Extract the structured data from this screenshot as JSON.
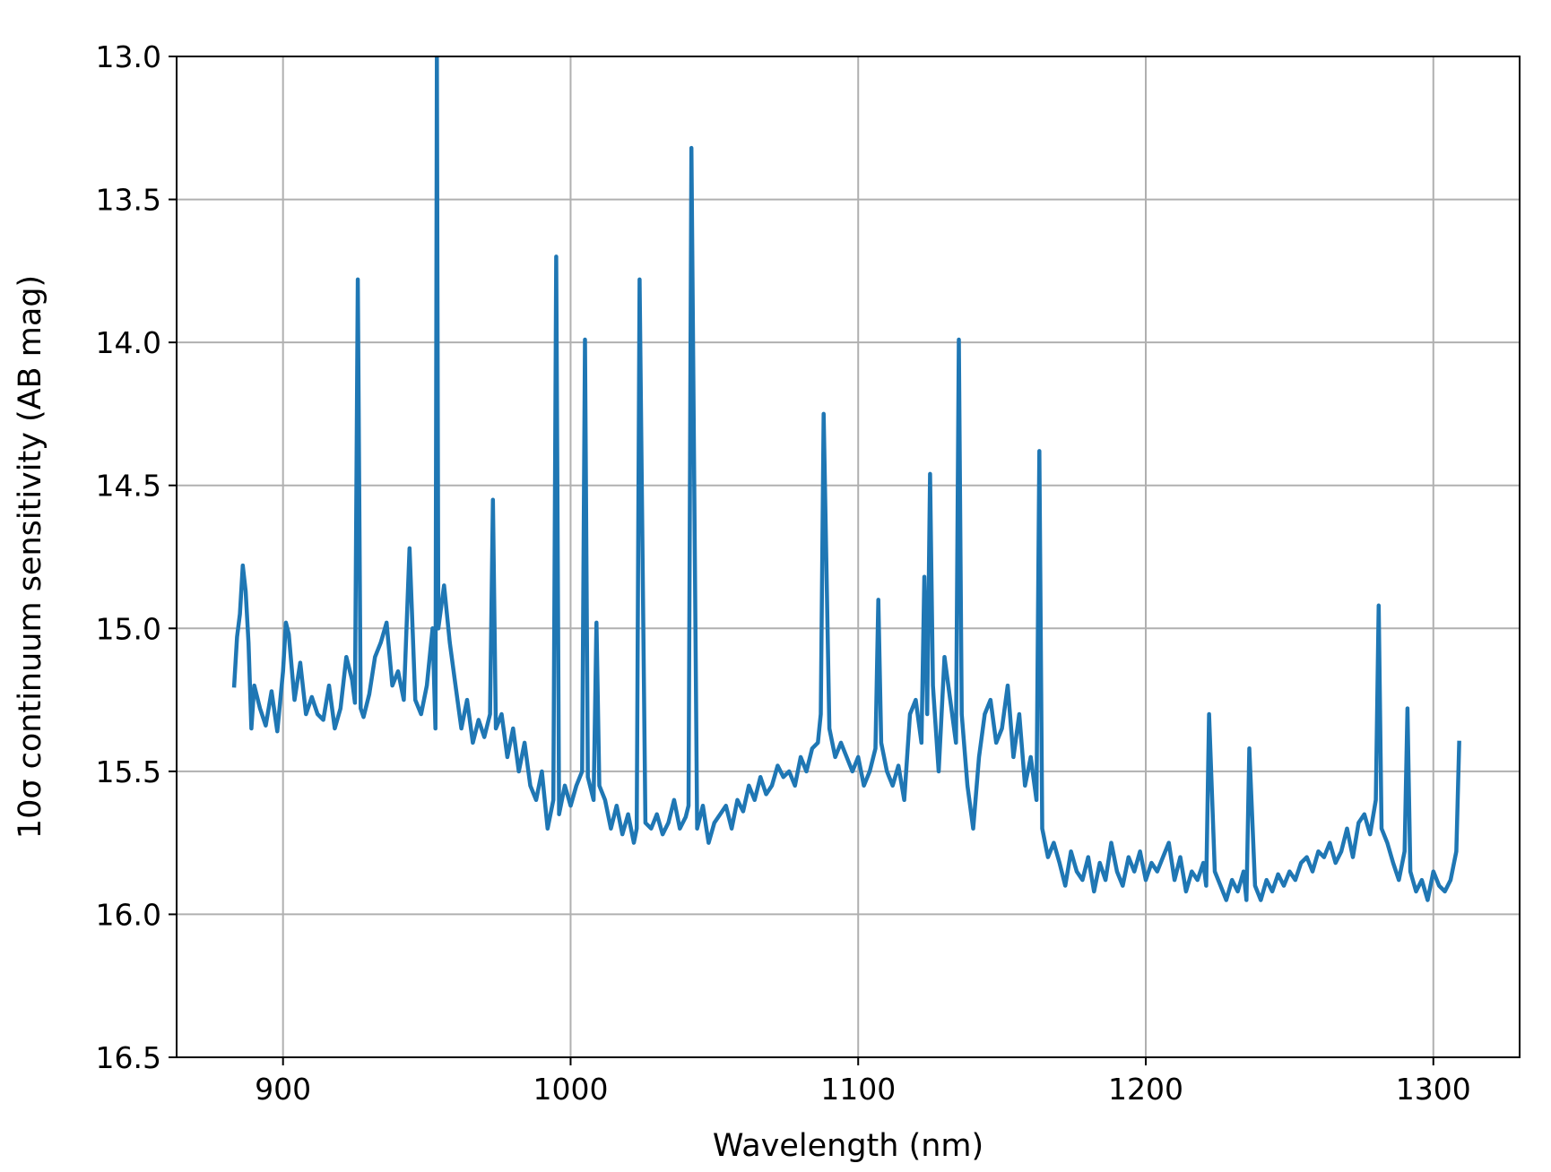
{
  "chart_data": {
    "type": "line",
    "title": "",
    "xlabel": "Wavelength (nm)",
    "ylabel": "10σ continuum sensitivity (AB mag)",
    "xlim": [
      863,
      1330
    ],
    "ylim": [
      13.0,
      16.5
    ],
    "y_inverted": true,
    "grid": true,
    "x_ticks": [
      900,
      1000,
      1100,
      1200,
      1300
    ],
    "x_tick_labels": [
      "900",
      "1000",
      "1100",
      "1200",
      "1300"
    ],
    "y_ticks": [
      13.0,
      13.5,
      14.0,
      14.5,
      15.0,
      15.5,
      16.0,
      16.5
    ],
    "y_tick_labels": [
      "13.0",
      "13.5",
      "14.0",
      "14.5",
      "15.0",
      "15.5",
      "16.0",
      "16.5"
    ],
    "line_color": "#1f77b4",
    "series": [
      {
        "x": [
          883,
          884,
          885,
          886,
          887,
          888,
          889,
          890,
          892,
          894,
          896,
          898,
          900,
          901,
          902,
          904,
          906,
          908,
          910,
          912,
          914,
          916,
          918,
          920,
          922,
          924,
          925,
          926,
          927,
          928,
          930,
          932,
          934,
          936,
          938,
          940,
          942,
          944,
          946,
          948,
          950,
          952,
          953,
          953.5,
          954,
          956,
          958,
          960,
          962,
          964,
          966,
          968,
          970,
          972,
          973,
          974,
          976,
          978,
          980,
          982,
          984,
          986,
          988,
          990,
          992,
          994,
          995,
          996,
          998,
          1000,
          1002,
          1004,
          1005,
          1006,
          1008,
          1009,
          1010,
          1012,
          1014,
          1016,
          1018,
          1020,
          1022,
          1023,
          1024,
          1026,
          1028,
          1030,
          1032,
          1034,
          1036,
          1038,
          1040,
          1041,
          1042,
          1044,
          1046,
          1048,
          1050,
          1052,
          1054,
          1056,
          1058,
          1060,
          1062,
          1064,
          1066,
          1068,
          1070,
          1072,
          1074,
          1076,
          1078,
          1080,
          1082,
          1084,
          1086,
          1087,
          1088,
          1090,
          1092,
          1094,
          1096,
          1098,
          1100,
          1102,
          1104,
          1106,
          1107,
          1108,
          1110,
          1112,
          1114,
          1116,
          1118,
          1120,
          1122,
          1123,
          1124,
          1125,
          1126,
          1128,
          1130,
          1132,
          1134,
          1135,
          1136,
          1138,
          1140,
          1142,
          1144,
          1146,
          1148,
          1150,
          1152,
          1154,
          1156,
          1158,
          1160,
          1162,
          1163,
          1164,
          1166,
          1168,
          1170,
          1172,
          1174,
          1176,
          1178,
          1180,
          1182,
          1184,
          1186,
          1188,
          1190,
          1192,
          1194,
          1196,
          1198,
          1200,
          1202,
          1204,
          1206,
          1208,
          1210,
          1212,
          1214,
          1216,
          1218,
          1220,
          1221,
          1222,
          1224,
          1226,
          1228,
          1230,
          1232,
          1234,
          1235,
          1236,
          1238,
          1240,
          1242,
          1244,
          1246,
          1248,
          1250,
          1252,
          1254,
          1256,
          1258,
          1260,
          1262,
          1264,
          1266,
          1268,
          1270,
          1272,
          1274,
          1276,
          1278,
          1280,
          1281,
          1282,
          1284,
          1286,
          1288,
          1290,
          1291,
          1292,
          1294,
          1296,
          1298,
          1300,
          1302,
          1304,
          1306,
          1308,
          1309
        ],
        "values": [
          15.2,
          15.03,
          14.95,
          14.78,
          14.87,
          15.05,
          15.35,
          15.2,
          15.28,
          15.34,
          15.22,
          15.36,
          15.15,
          14.98,
          15.02,
          15.25,
          15.12,
          15.3,
          15.24,
          15.3,
          15.32,
          15.2,
          15.35,
          15.28,
          15.1,
          15.18,
          15.26,
          13.78,
          15.28,
          15.31,
          15.23,
          15.1,
          15.05,
          14.98,
          15.2,
          15.15,
          15.25,
          14.72,
          15.25,
          15.3,
          15.2,
          15.0,
          15.35,
          13.0,
          15.0,
          14.85,
          15.05,
          15.2,
          15.35,
          15.25,
          15.4,
          15.32,
          15.38,
          15.3,
          14.55,
          15.35,
          15.3,
          15.45,
          15.35,
          15.5,
          15.4,
          15.55,
          15.6,
          15.5,
          15.7,
          15.6,
          13.7,
          15.65,
          15.55,
          15.62,
          15.55,
          15.5,
          13.99,
          15.52,
          15.6,
          14.98,
          15.55,
          15.6,
          15.7,
          15.62,
          15.72,
          15.65,
          15.75,
          15.7,
          13.78,
          15.68,
          15.7,
          15.65,
          15.72,
          15.68,
          15.6,
          15.7,
          15.66,
          15.62,
          13.32,
          15.7,
          15.62,
          15.75,
          15.68,
          15.65,
          15.62,
          15.7,
          15.6,
          15.64,
          15.55,
          15.6,
          15.52,
          15.58,
          15.55,
          15.48,
          15.52,
          15.5,
          15.55,
          15.45,
          15.5,
          15.42,
          15.4,
          15.3,
          14.25,
          15.35,
          15.45,
          15.4,
          15.45,
          15.5,
          15.45,
          15.55,
          15.5,
          15.42,
          14.9,
          15.4,
          15.5,
          15.55,
          15.48,
          15.6,
          15.3,
          15.25,
          15.4,
          14.82,
          15.3,
          14.46,
          15.2,
          15.5,
          15.1,
          15.25,
          15.4,
          13.99,
          15.3,
          15.55,
          15.7,
          15.45,
          15.3,
          15.25,
          15.4,
          15.35,
          15.2,
          15.45,
          15.3,
          15.55,
          15.45,
          15.6,
          14.38,
          15.7,
          15.8,
          15.75,
          15.82,
          15.9,
          15.78,
          15.85,
          15.88,
          15.8,
          15.92,
          15.82,
          15.88,
          15.75,
          15.85,
          15.9,
          15.8,
          15.85,
          15.78,
          15.88,
          15.82,
          15.85,
          15.8,
          15.75,
          15.88,
          15.8,
          15.92,
          15.85,
          15.88,
          15.82,
          15.9,
          15.3,
          15.85,
          15.9,
          15.95,
          15.88,
          15.92,
          15.85,
          15.95,
          15.42,
          15.9,
          15.95,
          15.88,
          15.92,
          15.86,
          15.9,
          15.85,
          15.88,
          15.82,
          15.8,
          15.85,
          15.78,
          15.8,
          15.75,
          15.82,
          15.78,
          15.7,
          15.8,
          15.68,
          15.65,
          15.72,
          15.6,
          14.92,
          15.7,
          15.75,
          15.82,
          15.88,
          15.78,
          15.28,
          15.85,
          15.92,
          15.88,
          15.95,
          15.85,
          15.9,
          15.92,
          15.88,
          15.78,
          15.4
        ]
      }
    ]
  }
}
